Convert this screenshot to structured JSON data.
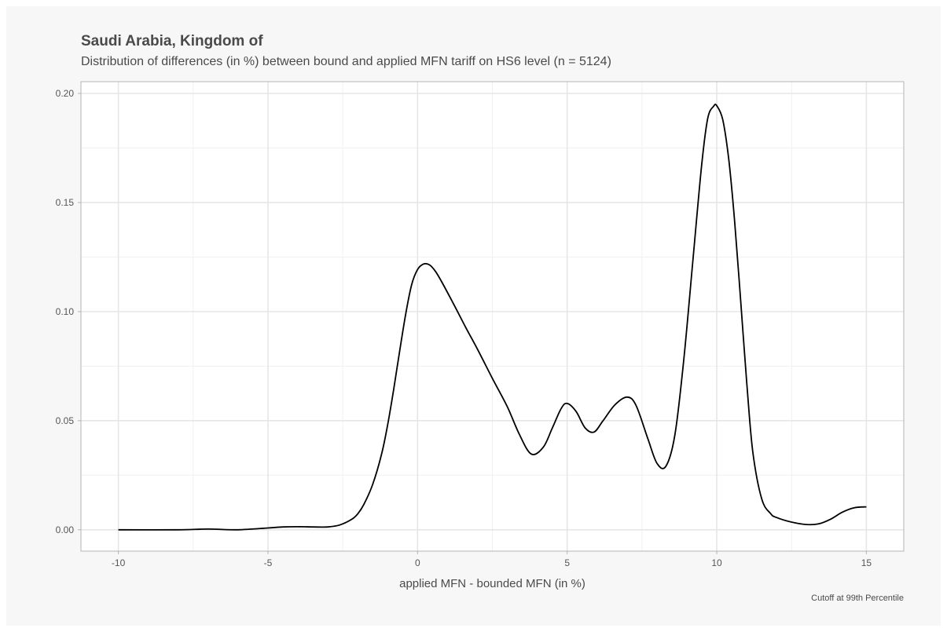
{
  "chart_data": {
    "type": "line",
    "title": "Saudi Arabia, Kingdom of",
    "subtitle": "Distribution of differences (in %) between bound and applied MFN tariff on HS6 level (n = 5124)",
    "xlabel": "applied MFN - bounded MFN (in %)",
    "ylabel": "",
    "caption": "Cutoff at 99th Percentile",
    "xlim": [
      -11.25,
      16.25
    ],
    "ylim": [
      -0.0098,
      0.2054
    ],
    "x_ticks": [
      -10,
      -5,
      0,
      5,
      10,
      15
    ],
    "x_tick_labels": [
      "-10",
      "-5",
      "0",
      "5",
      "10",
      "15"
    ],
    "y_ticks": [
      0.0,
      0.05,
      0.1,
      0.15,
      0.2
    ],
    "y_tick_labels": [
      "0.00",
      "0.05",
      "0.10",
      "0.15",
      "0.20"
    ],
    "x_minor_ticks": [
      -7.5,
      -2.5,
      2.5,
      7.5,
      12.5
    ],
    "y_minor_ticks": [
      0.025,
      0.075,
      0.125,
      0.175
    ],
    "grid": true,
    "legend": "none",
    "colors": {
      "line": "#000000",
      "panel_background": "#ffffff",
      "outer_background": "#f7f7f7",
      "grid_major": "#e6e6e6",
      "grid_minor": "#f0f0f0",
      "panel_border": "#b4b4b4"
    },
    "series": [
      {
        "x": [
          -10,
          -8,
          -7,
          -6,
          -5,
          -4.5,
          -4,
          -3.5,
          -3,
          -2.6,
          -2.2,
          -2,
          -1.8,
          -1.5,
          -1.2,
          -1,
          -0.8,
          -0.6,
          -0.4,
          -0.2,
          0,
          0.2,
          0.4,
          0.6,
          0.8,
          1.2,
          1.6,
          2,
          2.5,
          3,
          3.4,
          3.8,
          4.2,
          4.5,
          4.8,
          5,
          5.3,
          5.6,
          5.9,
          6.2,
          6.6,
          7,
          7.3,
          7.7,
          8,
          8.3,
          8.6,
          8.9,
          9.2,
          9.5,
          9.7,
          9.9,
          10,
          10.2,
          10.4,
          10.6,
          10.8,
          11,
          11.2,
          11.5,
          11.8,
          12,
          12.5,
          13,
          13.4,
          13.8,
          14.2,
          14.6,
          15
        ],
        "y": [
          0.0,
          0.0,
          0.0003,
          0.0,
          0.0008,
          0.0013,
          0.0014,
          0.0013,
          0.0013,
          0.0022,
          0.0048,
          0.0073,
          0.0115,
          0.0208,
          0.0348,
          0.048,
          0.0642,
          0.0818,
          0.0986,
          0.1122,
          0.1193,
          0.1218,
          0.1214,
          0.1184,
          0.1138,
          0.1036,
          0.093,
          0.0828,
          0.0694,
          0.0564,
          0.0438,
          0.0347,
          0.0378,
          0.0465,
          0.0556,
          0.0579,
          0.0542,
          0.0467,
          0.0448,
          0.05,
          0.0573,
          0.0608,
          0.0571,
          0.0416,
          0.0305,
          0.0291,
          0.0434,
          0.0784,
          0.1232,
          0.1678,
          0.1887,
          0.1942,
          0.1944,
          0.1879,
          0.1698,
          0.1408,
          0.1048,
          0.0678,
          0.0362,
          0.0142,
          0.0074,
          0.0056,
          0.0035,
          0.0024,
          0.0027,
          0.0048,
          0.0081,
          0.0101,
          0.0105
        ]
      }
    ]
  }
}
